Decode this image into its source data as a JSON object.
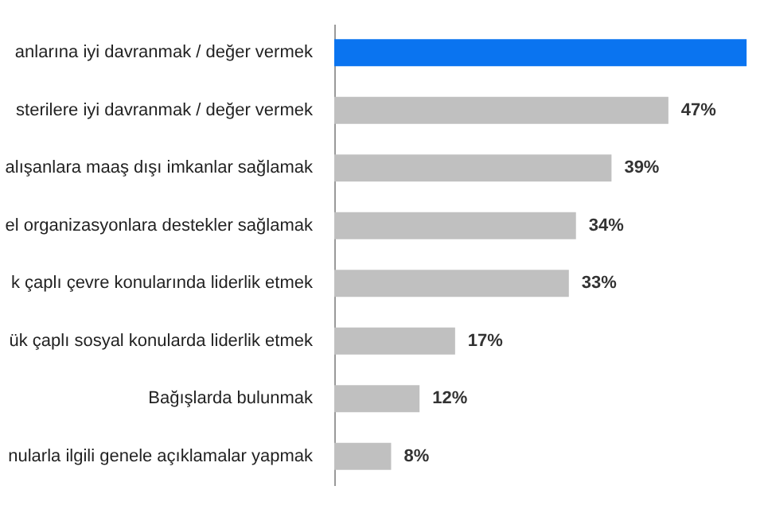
{
  "chart_data": {
    "type": "bar",
    "orientation": "horizontal",
    "categories": [
      "anlarına iyi davranmak / değer vermek",
      "sterilere iyi davranmak / değer vermek",
      "alışanlara maaş dışı imkanlar sağlamak",
      "el organizasyonlara destekler sağlamak",
      "k çaplı çevre konularında liderlik etmek",
      "ük çaplı sosyal konularda liderlik etmek",
      "Bağışlarda bulunmak",
      "nularla ilgili genele açıklamalar yapmak"
    ],
    "values": [
      58,
      47,
      39,
      34,
      33,
      17,
      12,
      8
    ],
    "value_labels": [
      null,
      "47%",
      "39%",
      "34%",
      "33%",
      "17%",
      "12%",
      "8%"
    ],
    "colors": [
      "#0a74f0",
      "#c0c0c0",
      "#c0c0c0",
      "#c0c0c0",
      "#c0c0c0",
      "#c0c0c0",
      "#c0c0c0",
      "#c0c0c0"
    ],
    "xlim": [
      0,
      60
    ],
    "tick_labels": "y",
    "grid": false
  }
}
